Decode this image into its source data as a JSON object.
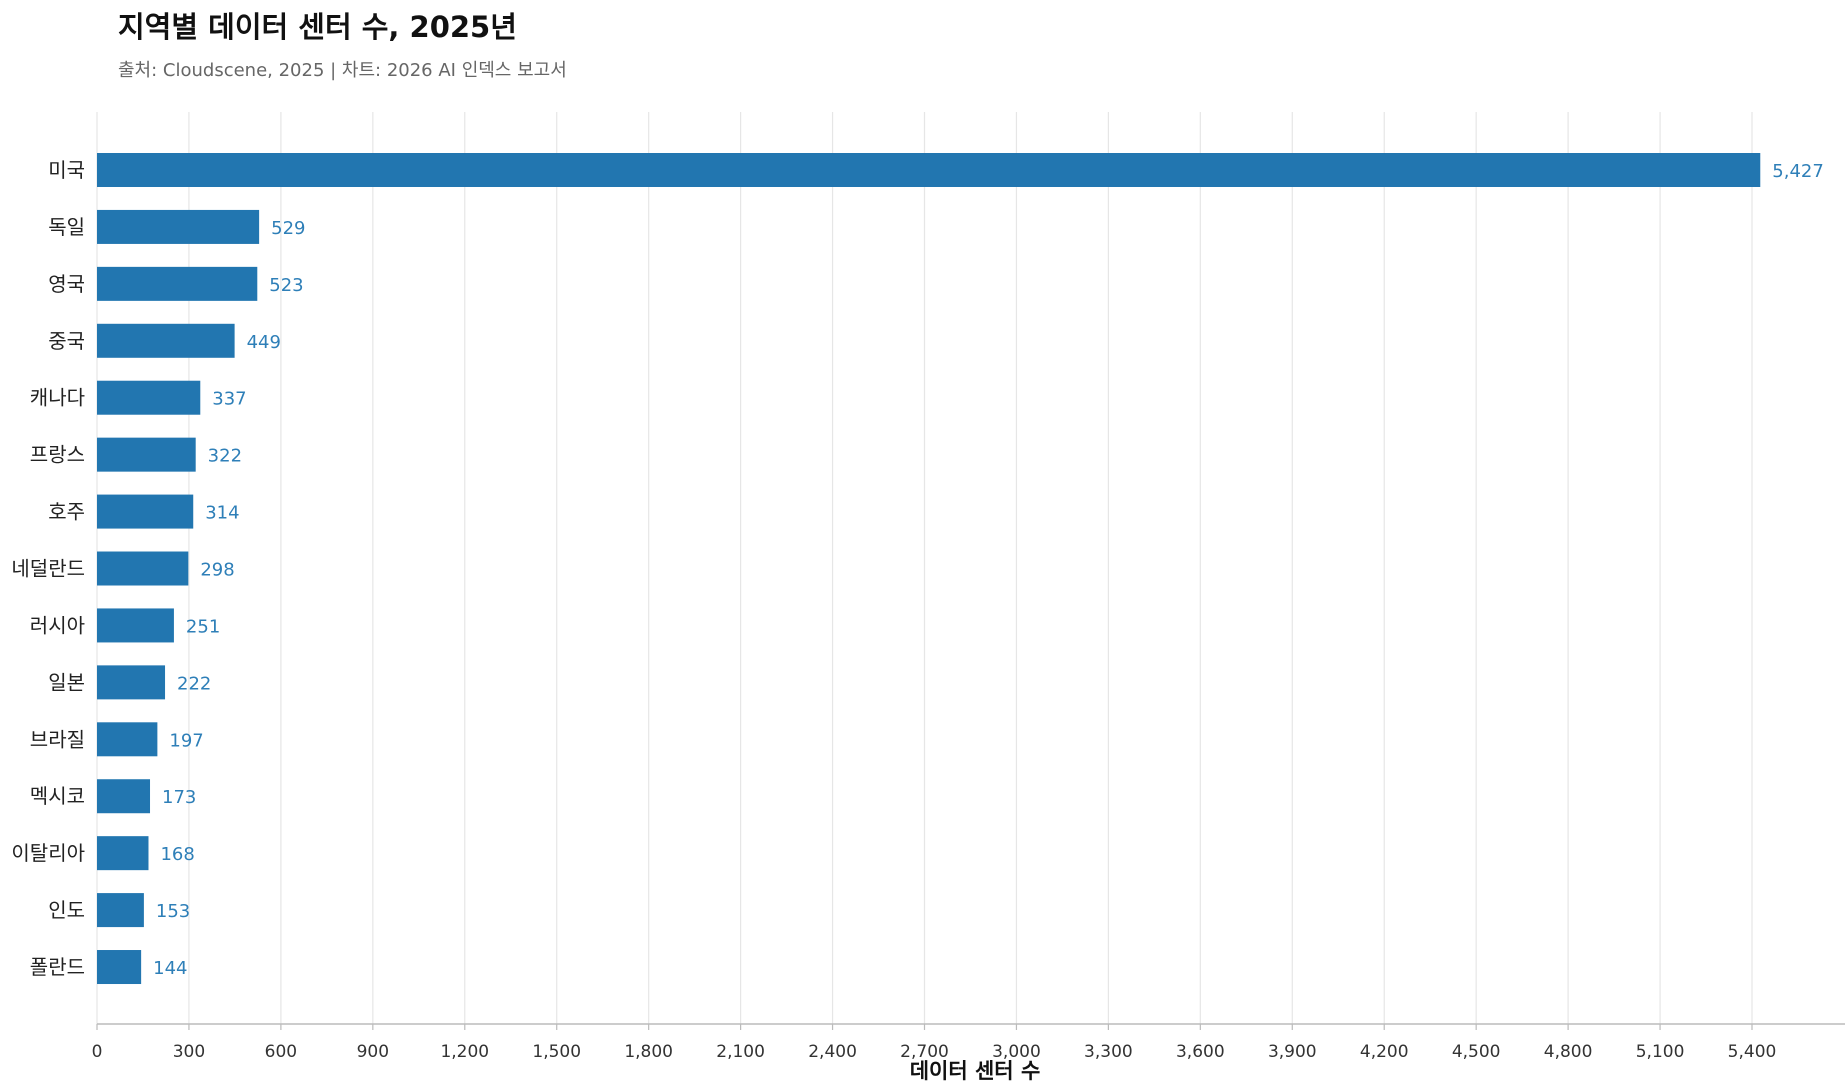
{
  "header": {
    "title": "지역별 데이터 센터 수, 2025년",
    "subtitle": "출처: Cloudscene, 2025 | 차트: 2026 AI 인덱스 보고서"
  },
  "colors": {
    "bar": "#2276b0",
    "value_label": "#2e7fb8",
    "grid": "#e6e6e6",
    "axis": "#bbbbbb"
  },
  "chart_data": {
    "type": "bar",
    "orientation": "horizontal",
    "title": "지역별 데이터 센터 수, 2025년",
    "subtitle": "출처: Cloudscene, 2025 | 차트: 2026 AI 인덱스 보고서",
    "xlabel": "데이터 센터 수",
    "ylabel": "",
    "xlim": [
      0,
      5800
    ],
    "x_ticks": [
      0,
      300,
      600,
      900,
      1200,
      1500,
      1800,
      2100,
      2400,
      2700,
      3000,
      3300,
      3600,
      3900,
      4200,
      4500,
      4800,
      5100,
      5400
    ],
    "x_tick_labels": [
      "0",
      "300",
      "600",
      "900",
      "1,200",
      "1,500",
      "1,800",
      "2,100",
      "2,400",
      "2,700",
      "3,000",
      "3,300",
      "3,600",
      "3,900",
      "4,200",
      "4,500",
      "4,800",
      "5,100",
      "5,400"
    ],
    "grid": true,
    "categories": [
      "미국",
      "독일",
      "영국",
      "중국",
      "캐나다",
      "프랑스",
      "호주",
      "네덜란드",
      "러시아",
      "일본",
      "브라질",
      "멕시코",
      "이탈리아",
      "인도",
      "폴란드"
    ],
    "values": [
      5427,
      529,
      523,
      449,
      337,
      322,
      314,
      298,
      251,
      222,
      197,
      173,
      168,
      153,
      144
    ],
    "value_labels": [
      "5,427",
      "529",
      "523",
      "449",
      "337",
      "322",
      "314",
      "298",
      "251",
      "222",
      "197",
      "173",
      "168",
      "153",
      "144"
    ]
  }
}
